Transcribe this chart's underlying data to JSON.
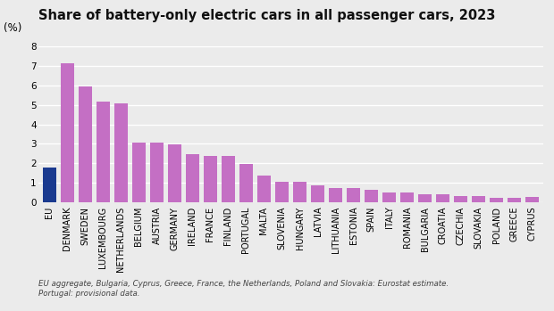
{
  "title": "Share of battery-only electric cars in all passenger cars, 2023",
  "ylabel": "(%)",
  "categories": [
    "EU",
    "DENMARK",
    "SWEDEN",
    "LUXEMBOURG",
    "NETHERLANDS",
    "BELGIUM",
    "AUSTRIA",
    "GERMANY",
    "IRELAND",
    "FRANCE",
    "FINLAND",
    "PORTUGAL",
    "MALTA",
    "SLOVENIA",
    "HUNGARY",
    "LATVIA",
    "LITHUANIA",
    "ESTONIA",
    "SPAIN",
    "ITALY",
    "ROMANIA",
    "BULGARIA",
    "CROATIA",
    "CZECHIA",
    "SLOVAKIA",
    "POLAND",
    "GREECE",
    "CYPRUS"
  ],
  "values": [
    1.8,
    7.15,
    5.97,
    5.18,
    5.06,
    3.07,
    3.07,
    2.97,
    2.46,
    2.36,
    2.36,
    1.97,
    1.38,
    1.05,
    1.05,
    0.85,
    0.72,
    0.72,
    0.62,
    0.5,
    0.5,
    0.4,
    0.4,
    0.32,
    0.3,
    0.22,
    0.2,
    0.25
  ],
  "bar_color_eu": "#1a3a8f",
  "bar_color_others": "#c46fc4",
  "ylim": [
    0,
    8
  ],
  "yticks": [
    0,
    1,
    2,
    3,
    4,
    5,
    6,
    7,
    8
  ],
  "footnote_line1": "EU aggregate, Bulgaria, Cyprus, Greece, France, the Netherlands, Poland and Slovakia: Eurostat estimate.",
  "footnote_line2": "Portugal: provisional data.",
  "background_color": "#ebebeb",
  "grid_color": "#ffffff",
  "title_fontsize": 10.5,
  "axis_label_fontsize": 7.0,
  "ylabel_fontsize": 8.5
}
